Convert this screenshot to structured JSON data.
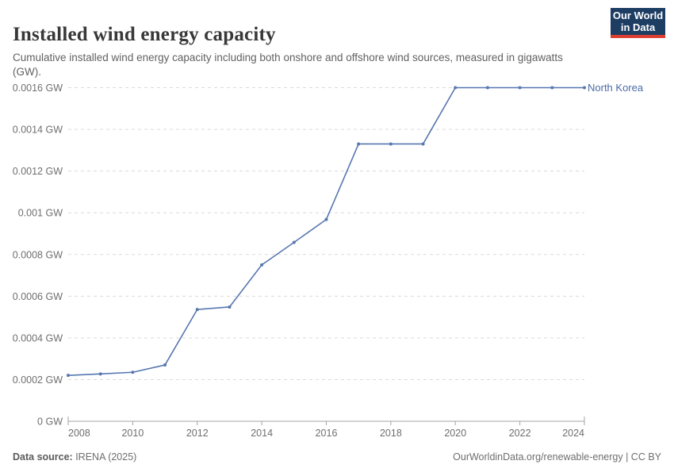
{
  "header": {
    "title": "Installed wind energy capacity",
    "subtitle": "Cumulative installed wind energy capacity including both onshore and offshore wind sources, measured in gigawatts (GW).",
    "logo": {
      "line1": "Our World",
      "line2": "in Data",
      "bg_color": "#1d3d63",
      "accent_color": "#dc3e32"
    }
  },
  "chart_data": {
    "type": "line",
    "title": "Installed wind energy capacity",
    "x": [
      2008,
      2009,
      2010,
      2011,
      2012,
      2013,
      2014,
      2015,
      2016,
      2017,
      2018,
      2019,
      2020,
      2021,
      2022,
      2023,
      2024
    ],
    "series": [
      {
        "name": "North Korea",
        "color": "#5777b0",
        "label_color": "#4a6ba6",
        "values": [
          0.00022,
          0.000227,
          0.000235,
          0.00027,
          0.000536,
          0.000548,
          0.00075,
          0.000858,
          0.000968,
          0.00133,
          0.00133,
          0.00133,
          0.0016,
          0.0016,
          0.0016,
          0.0016,
          0.0016
        ]
      }
    ],
    "unit": "GW",
    "xlabel": "",
    "ylabel": "",
    "xlim": [
      2008,
      2024
    ],
    "ylim": [
      0,
      0.0016
    ],
    "x_ticks": [
      2008,
      2010,
      2012,
      2014,
      2016,
      2018,
      2020,
      2022,
      2024
    ],
    "y_ticks": [
      0,
      0.0002,
      0.0004,
      0.0006,
      0.0008,
      0.001,
      0.0012,
      0.0014,
      0.0016
    ],
    "y_tick_labels": [
      "0 GW",
      "0.0002 GW",
      "0.0004 GW",
      "0.0006 GW",
      "0.0008 GW",
      "0.001 GW",
      "0.0012 GW",
      "0.0014 GW",
      "0.0016 GW"
    ],
    "grid": "horizontal-dashed",
    "grid_color": "#dadada",
    "axis_color": "#a3a3a3",
    "tick_label_color": "#6e6e6e",
    "legend_position": "end-of-line-label"
  },
  "footer": {
    "source_label": "Data source:",
    "source_value": " IRENA (2025)",
    "rights": "OurWorldinData.org/renewable-energy | CC BY"
  }
}
